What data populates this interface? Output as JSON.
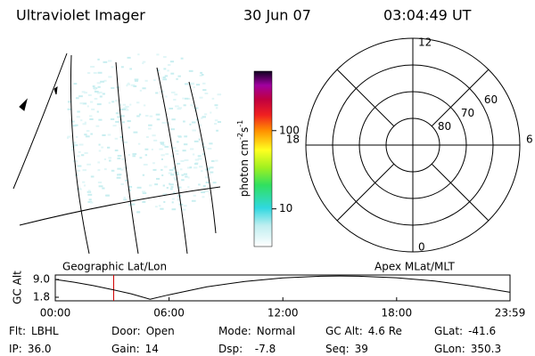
{
  "header": {
    "title": "Ultraviolet Imager",
    "date": "30 Jun 07",
    "time": "03:04:49 UT"
  },
  "colorbar": {
    "label_parts": [
      {
        "text": "photon cm"
      },
      {
        "text": "-2",
        "sup": true
      },
      {
        "text": "s"
      },
      {
        "text": "-1",
        "sup": true
      }
    ],
    "scale": "log",
    "lim": [
      3.3,
      575
    ],
    "ticks": [
      10,
      100
    ]
  },
  "polar": {
    "lat_range": [
      50,
      90
    ],
    "rings": [
      50,
      60,
      70,
      80
    ],
    "ring_labels": [
      60,
      70,
      80
    ],
    "mlt_labels": [
      12,
      18,
      6,
      0
    ]
  },
  "timeline": {
    "left_label": "Geographic Lat/Lon",
    "right_label": "Apex MLat/MLT",
    "ylabel": "GC Alt",
    "x": [
      0,
      1,
      2,
      3,
      4,
      5,
      6,
      8,
      10,
      12,
      14,
      15,
      16,
      18,
      20,
      22,
      23.98
    ],
    "values": [
      9.0,
      7.9,
      6.5,
      4.9,
      3.2,
      1.0,
      2.8,
      6.0,
      8.2,
      9.6,
      10.3,
      10.4,
      10.3,
      9.7,
      8.4,
      6.3,
      3.8
    ],
    "current": 3.08,
    "xlim": [
      0,
      23.98
    ],
    "ylim": [
      0.36,
      10.8
    ],
    "xticks": [
      {
        "value": 0,
        "label": "00:00"
      },
      {
        "value": 6,
        "label": "06:00"
      },
      {
        "value": 12,
        "label": "12:00"
      },
      {
        "value": 18,
        "label": "18:00"
      },
      {
        "value": 23.98,
        "label": "23:59"
      }
    ],
    "yticks": [
      {
        "value": 9.0,
        "label": "9.0"
      },
      {
        "value": 1.8,
        "label": "1.8"
      }
    ]
  },
  "info": [
    [
      {
        "label": "Flt:",
        "value": "LBHL"
      },
      {
        "label": "Door:",
        "value": "Open"
      },
      {
        "label": "Mode:",
        "value": "Normal"
      },
      {
        "label": "GC Alt:",
        "value": "4.6 Re"
      },
      {
        "label": "GLat:",
        "value": "-41.6"
      }
    ],
    [
      {
        "label": "IP:",
        "value": "36.0"
      },
      {
        "label": "Gain:",
        "value": "14"
      },
      {
        "label": "Dsp:",
        "value": "  -7.8"
      },
      {
        "label": "Seq:",
        "value": "39"
      },
      {
        "label": "GLon:",
        "value": "350.3"
      }
    ]
  ]
}
